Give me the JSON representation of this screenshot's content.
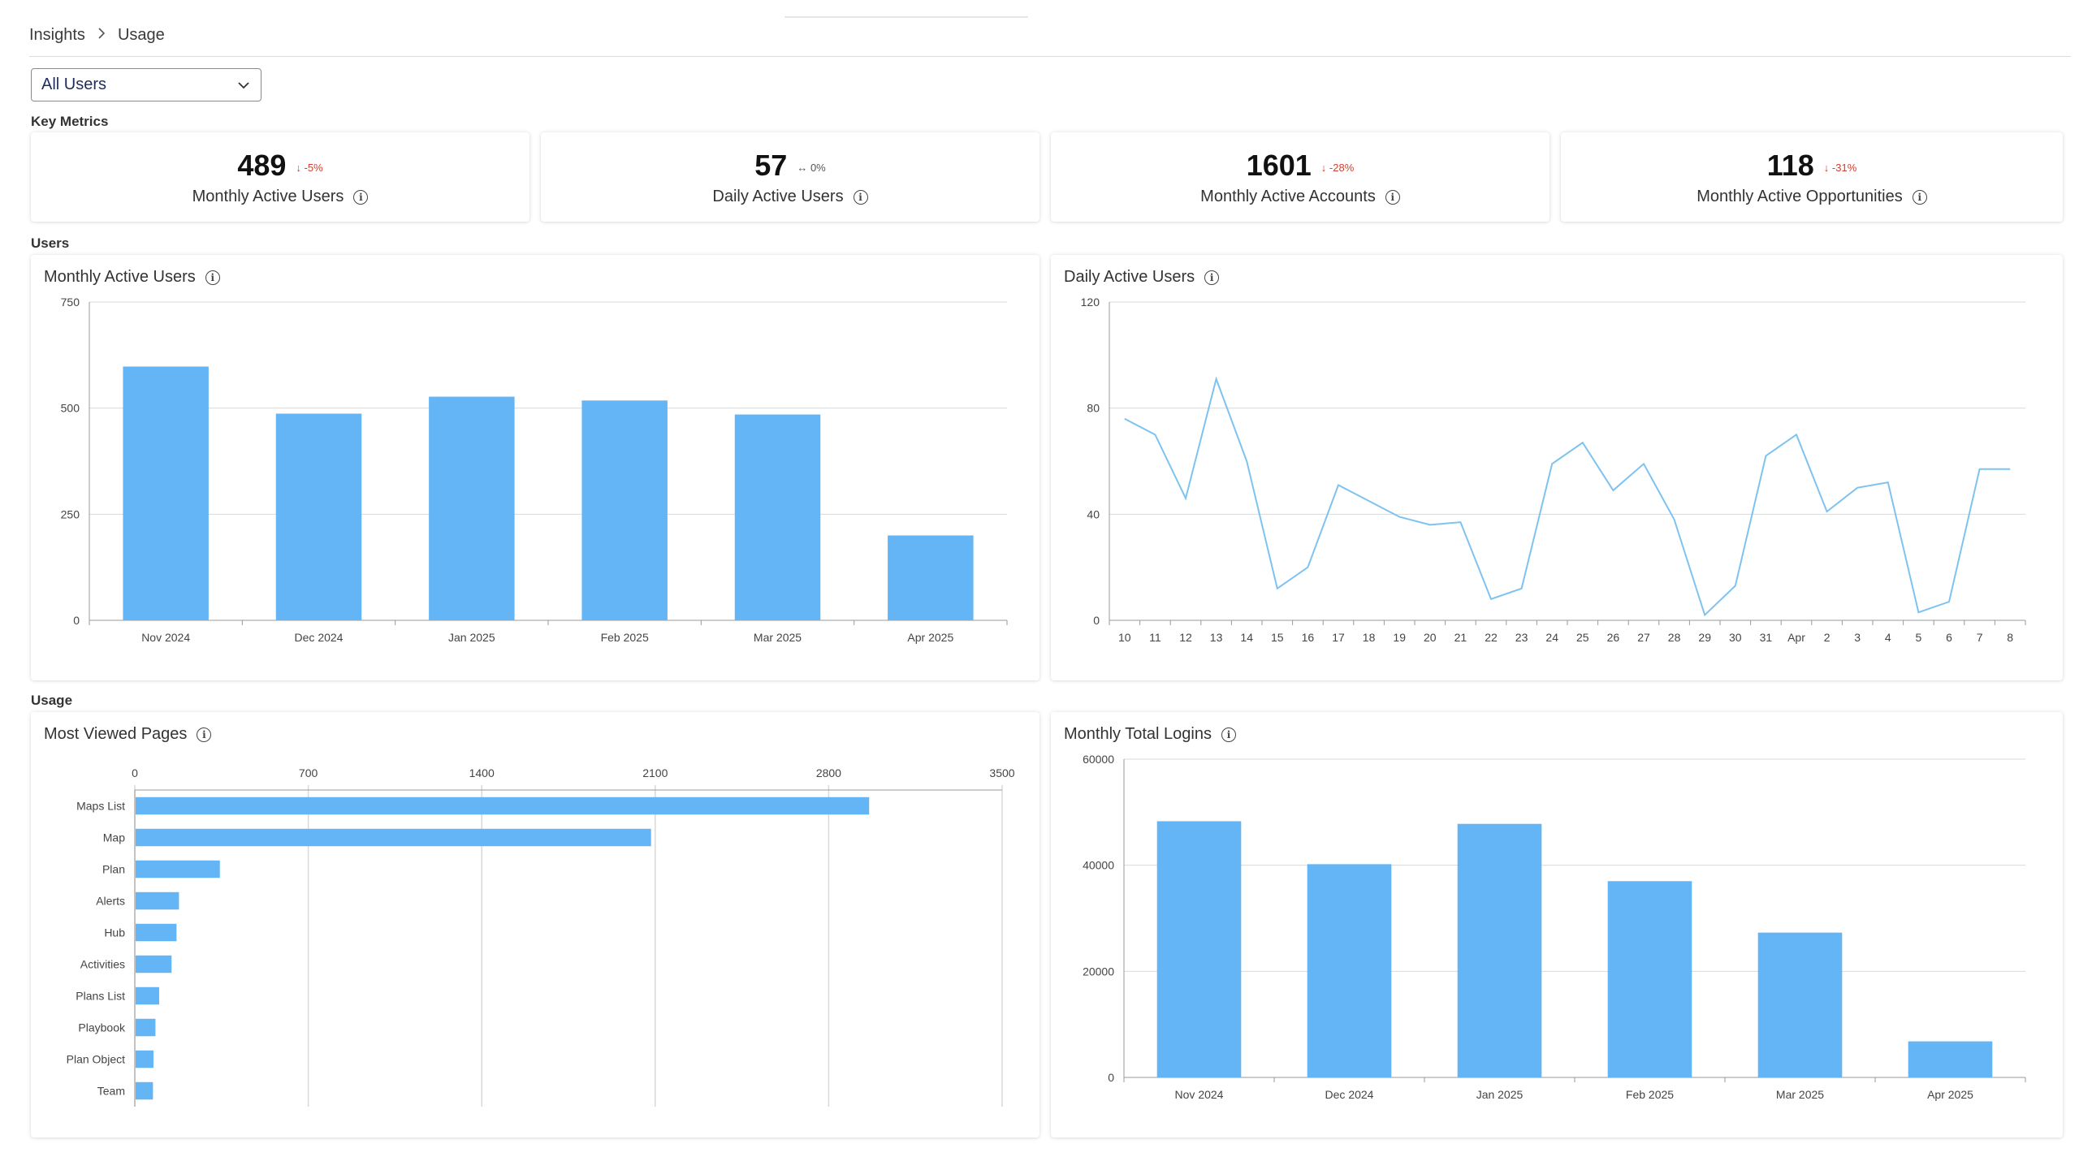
{
  "breadcrumb": {
    "items": [
      "Insights",
      "Usage"
    ],
    "separator": ">"
  },
  "filter": {
    "selected": "All Users"
  },
  "sections": {
    "key_metrics": "Key Metrics",
    "users": "Users",
    "usage": "Usage"
  },
  "metrics": [
    {
      "value": "489",
      "arrow": "↓",
      "delta": "-5%",
      "trend": "down",
      "label": "Monthly Active Users"
    },
    {
      "value": "57",
      "arrow": "↔",
      "delta": "0%",
      "trend": "flat",
      "label": "Daily Active Users"
    },
    {
      "value": "1601",
      "arrow": "↓",
      "delta": "-28%",
      "trend": "down",
      "label": "Monthly Active Accounts"
    },
    {
      "value": "118",
      "arrow": "↓",
      "delta": "-31%",
      "trend": "down",
      "label": "Monthly Active Opportunities"
    }
  ],
  "colors": {
    "bar": "#64b5f6",
    "line": "#7ec3f0",
    "grid": "#d9d9d9",
    "down": "#d4402c"
  },
  "chart_data": [
    {
      "id": "mau",
      "type": "bar",
      "title": "Monthly Active Users",
      "categories": [
        "Nov 2024",
        "Dec 2024",
        "Jan 2025",
        "Feb 2025",
        "Mar 2025",
        "Apr 2025"
      ],
      "values": [
        598,
        487,
        527,
        518,
        485,
        200
      ],
      "yticks": [
        0,
        250,
        500,
        750
      ],
      "ylim": [
        0,
        750
      ],
      "grid": true
    },
    {
      "id": "dau",
      "type": "line",
      "title": "Daily Active Users",
      "categories": [
        "10",
        "11",
        "12",
        "13",
        "14",
        "15",
        "16",
        "17",
        "18",
        "19",
        "20",
        "21",
        "22",
        "23",
        "24",
        "25",
        "26",
        "27",
        "28",
        "29",
        "30",
        "31",
        "Apr",
        "2",
        "3",
        "4",
        "5",
        "6",
        "7",
        "8"
      ],
      "values": [
        76,
        70,
        46,
        91,
        60,
        12,
        20,
        51,
        45,
        39,
        36,
        37,
        8,
        12,
        59,
        67,
        49,
        59,
        38,
        2,
        13,
        62,
        70,
        41,
        50,
        52,
        3,
        7,
        57,
        57
      ],
      "yticks": [
        0,
        40,
        80,
        120
      ],
      "ylim": [
        0,
        120
      ],
      "grid": true
    },
    {
      "id": "pages",
      "type": "bar",
      "orientation": "horizontal",
      "title": "Most Viewed Pages",
      "categories": [
        "Maps List",
        "Map",
        "Plan",
        "Alerts",
        "Hub",
        "Activities",
        "Plans List",
        "Playbook",
        "Plan Object",
        "Team"
      ],
      "values": [
        2960,
        2080,
        340,
        175,
        165,
        145,
        95,
        80,
        72,
        70
      ],
      "xticks": [
        0,
        700,
        1400,
        2100,
        2800,
        3500
      ],
      "xlim": [
        0,
        3500
      ],
      "grid": true
    },
    {
      "id": "logins",
      "type": "bar",
      "title": "Monthly Total Logins",
      "categories": [
        "Nov 2024",
        "Dec 2024",
        "Jan 2025",
        "Feb 2025",
        "Mar 2025",
        "Apr 2025"
      ],
      "values": [
        48300,
        40200,
        47800,
        37000,
        27300,
        6800
      ],
      "yticks": [
        0,
        20000,
        40000,
        60000
      ],
      "ylim": [
        0,
        60000
      ],
      "grid": true
    }
  ]
}
